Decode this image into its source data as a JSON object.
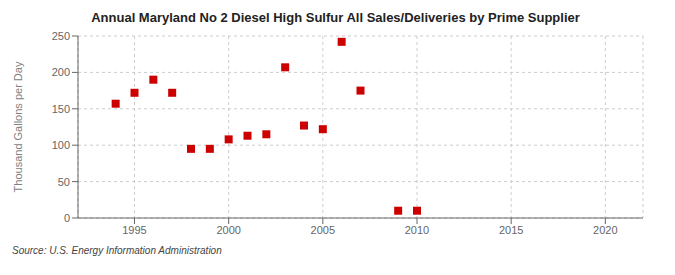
{
  "chart_data": {
    "type": "scatter",
    "title": "Annual Maryland No 2 Diesel High Sulfur All Sales/Deliveries by Prime Supplier",
    "ylabel": "Thousand Gallons per Day",
    "source": "Source: U.S. Energy Information Administration",
    "x": [
      1994,
      1995,
      1996,
      1997,
      1998,
      1999,
      2000,
      2001,
      2002,
      2003,
      2004,
      2005,
      2006,
      2007,
      2009,
      2010
    ],
    "values": [
      157,
      172,
      190,
      172,
      95,
      95,
      108,
      113,
      115,
      207,
      127,
      122,
      242,
      175,
      10,
      10
    ],
    "color": "#cc0000",
    "marker": "square",
    "xlim": [
      1992,
      2022
    ],
    "xticks": [
      1995,
      2000,
      2005,
      2010,
      2015,
      2020
    ],
    "ylim": [
      0,
      250
    ],
    "yticks": [
      0,
      50,
      100,
      150,
      200,
      250
    ],
    "grid": true
  }
}
